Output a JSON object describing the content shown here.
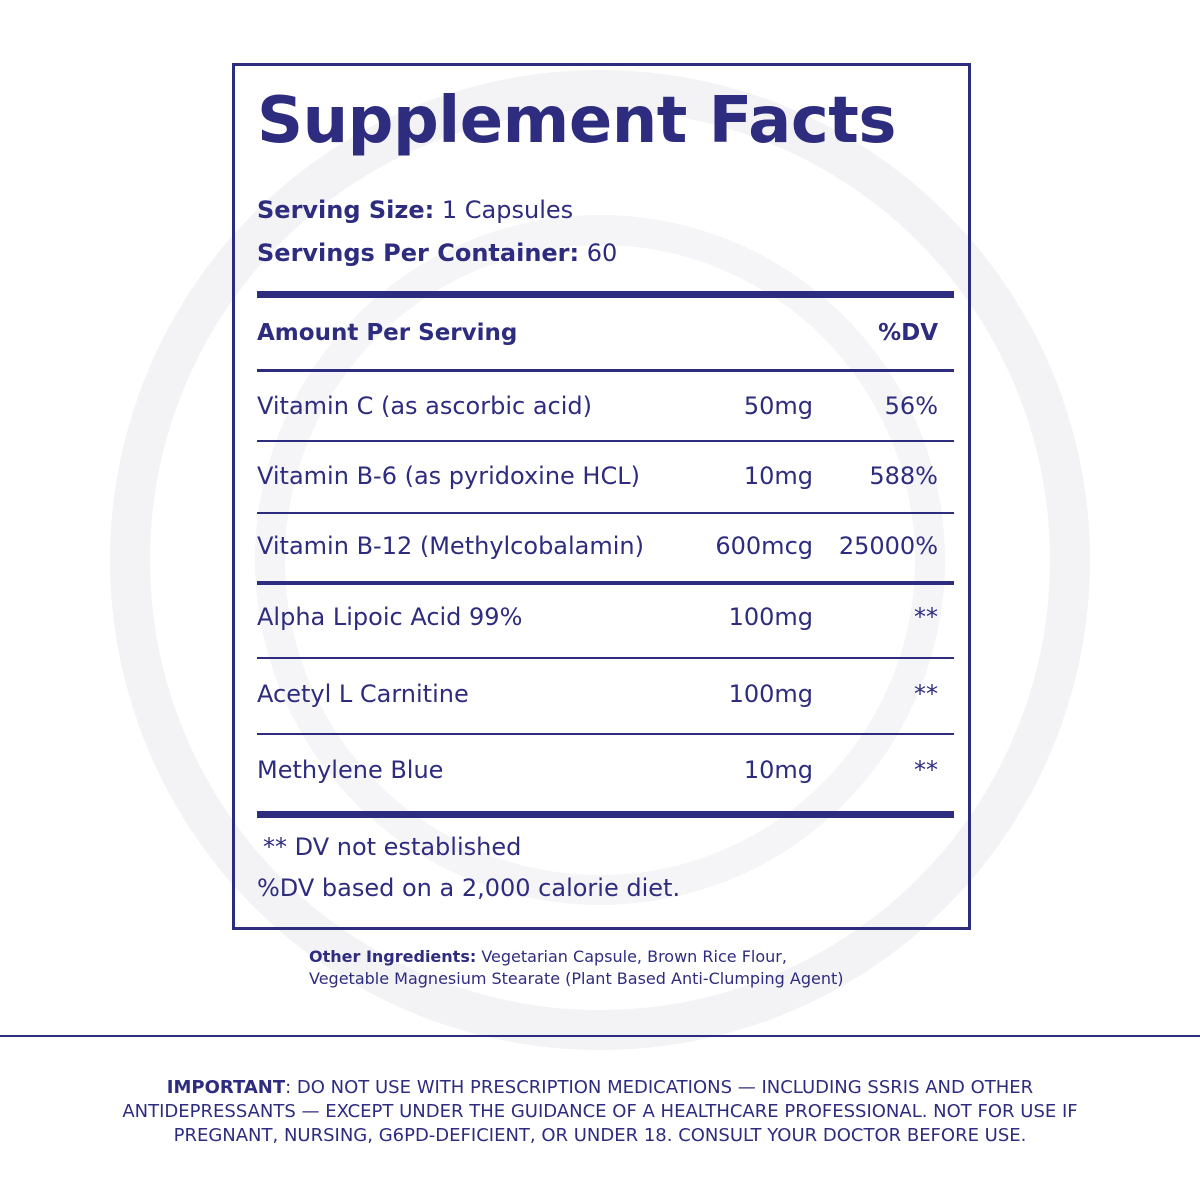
{
  "title": "Supplement Facts",
  "serving_size": {
    "label": "Serving Size:",
    "value": "1 Capsules"
  },
  "servings_per_container": {
    "label": "Servings Per Container:",
    "value": "60"
  },
  "table": {
    "header": [
      "Amount Per Serving",
      "%DV"
    ],
    "rows": [
      [
        "Vitamin C (as ascorbic acid)",
        "50mg",
        "56%"
      ],
      [
        "Vitamin B-6 (as pyridoxine HCL)",
        "10mg",
        "588%"
      ],
      [
        "Vitamin B-12 (Methylcobalamin)",
        "600mcg",
        "25000%"
      ],
      [
        "Alpha Lipoic Acid 99%",
        "100mg",
        "**"
      ],
      [
        "Acetyl L Carnitine",
        "100mg",
        "**"
      ],
      [
        "Methylene Blue",
        "10mg",
        "**"
      ]
    ]
  },
  "footnotes": [
    "** DV not established",
    "%DV based on a 2,000 calorie diet."
  ],
  "other_ingredients": {
    "label": "Other Ingredients:",
    "lines": [
      "Vegetarian Capsule, Brown Rice Flour,",
      "Vegetable Magnesium Stearate (Plant Based Anti-Clumping Agent)"
    ]
  },
  "important": {
    "label": "IMPORTANT",
    "text": ": DO NOT USE WITH PRESCRIPTION MEDICATIONS — INCLUDING SSRIS AND OTHER ANTIDEPRESSANTS — EXCEPT UNDER THE GUIDANCE OF A HEALTHCARE PROFESSIONAL. NOT FOR USE IF PREGNANT, NURSING, G6PD-DEFICIENT, OR UNDER 18. CONSULT YOUR DOCTOR BEFORE USE."
  }
}
